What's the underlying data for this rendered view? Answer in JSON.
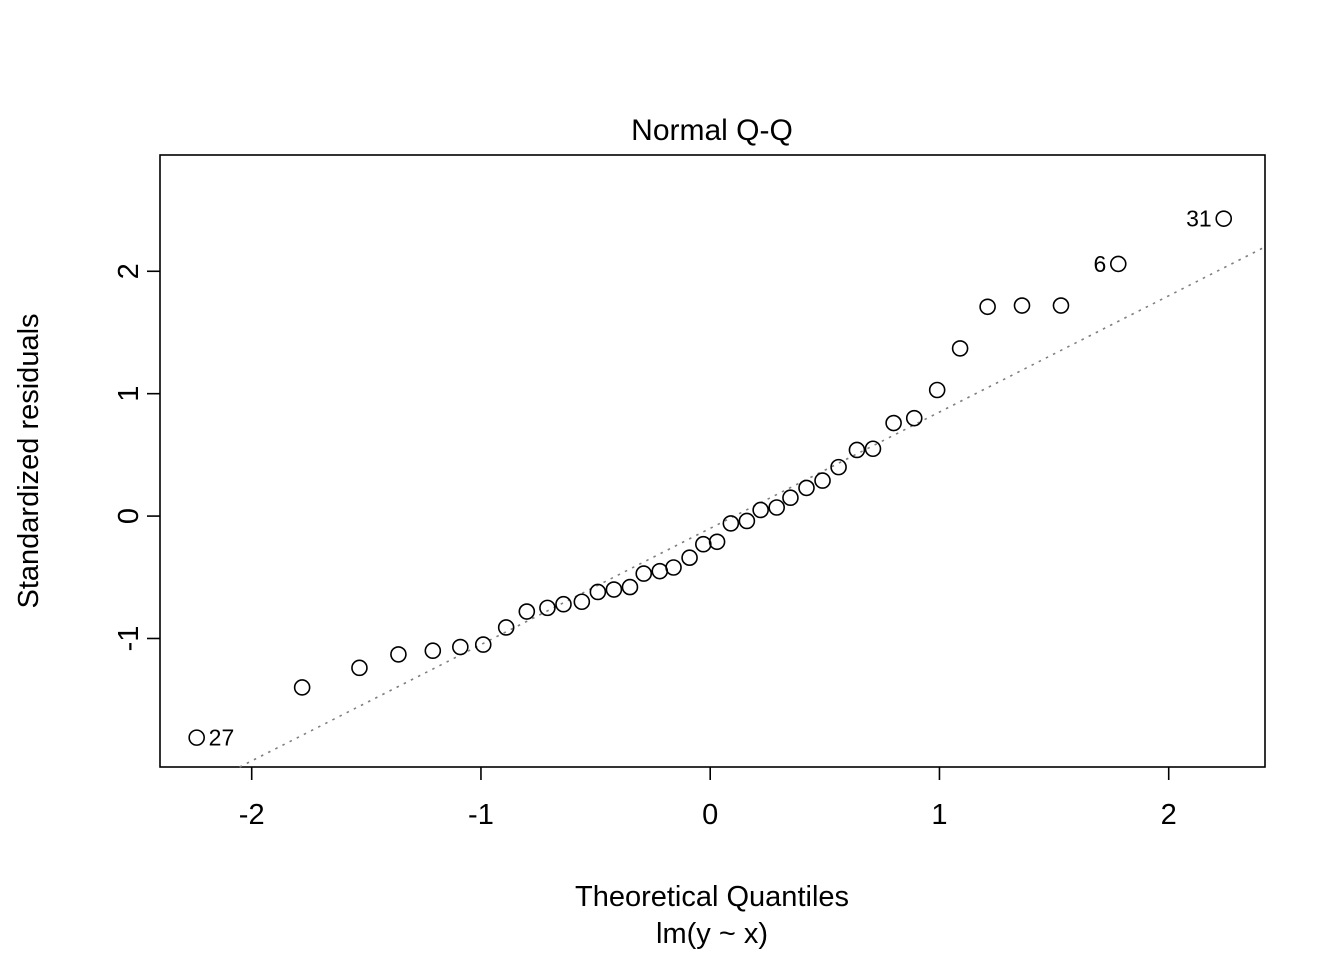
{
  "chart_data": {
    "type": "scatter",
    "title": "Normal Q-Q",
    "xlabel": "Theoretical Quantiles",
    "xlabel_sub": "lm(y ~ x)",
    "ylabel": "Standardized residuals",
    "xlim": [
      -2.4,
      2.42
    ],
    "ylim": [
      -2.05,
      2.95
    ],
    "x_ticks": [
      -2,
      -1,
      0,
      1,
      2
    ],
    "y_ticks": [
      -1,
      0,
      1,
      2
    ],
    "grid": false,
    "legend": false,
    "reference_line": {
      "slope": 0.95,
      "intercept": -0.1,
      "style": "dotted",
      "color": "#7f7f7f"
    },
    "point_style": {
      "marker": "open-circle",
      "stroke": "#000000",
      "fill": "none"
    },
    "points": [
      {
        "x": -2.24,
        "y": -1.81,
        "label": "27",
        "label_side": "right"
      },
      {
        "x": -1.78,
        "y": -1.4
      },
      {
        "x": -1.53,
        "y": -1.24
      },
      {
        "x": -1.36,
        "y": -1.13
      },
      {
        "x": -1.21,
        "y": -1.1
      },
      {
        "x": -1.09,
        "y": -1.07
      },
      {
        "x": -0.99,
        "y": -1.05
      },
      {
        "x": -0.89,
        "y": -0.91
      },
      {
        "x": -0.8,
        "y": -0.78
      },
      {
        "x": -0.71,
        "y": -0.75
      },
      {
        "x": -0.64,
        "y": -0.72
      },
      {
        "x": -0.56,
        "y": -0.7
      },
      {
        "x": -0.49,
        "y": -0.62
      },
      {
        "x": -0.42,
        "y": -0.6
      },
      {
        "x": -0.35,
        "y": -0.58
      },
      {
        "x": -0.29,
        "y": -0.47
      },
      {
        "x": -0.22,
        "y": -0.45
      },
      {
        "x": -0.16,
        "y": -0.42
      },
      {
        "x": -0.09,
        "y": -0.34
      },
      {
        "x": -0.03,
        "y": -0.23
      },
      {
        "x": 0.03,
        "y": -0.21
      },
      {
        "x": 0.09,
        "y": -0.06
      },
      {
        "x": 0.16,
        "y": -0.04
      },
      {
        "x": 0.22,
        "y": 0.05
      },
      {
        "x": 0.29,
        "y": 0.07
      },
      {
        "x": 0.35,
        "y": 0.15
      },
      {
        "x": 0.42,
        "y": 0.23
      },
      {
        "x": 0.49,
        "y": 0.29
      },
      {
        "x": 0.56,
        "y": 0.4
      },
      {
        "x": 0.64,
        "y": 0.54
      },
      {
        "x": 0.71,
        "y": 0.55
      },
      {
        "x": 0.8,
        "y": 0.76
      },
      {
        "x": 0.89,
        "y": 0.8
      },
      {
        "x": 0.99,
        "y": 1.03
      },
      {
        "x": 1.09,
        "y": 1.37
      },
      {
        "x": 1.21,
        "y": 1.71
      },
      {
        "x": 1.36,
        "y": 1.72
      },
      {
        "x": 1.53,
        "y": 1.72
      },
      {
        "x": 1.78,
        "y": 2.06,
        "label": "6",
        "label_side": "left"
      },
      {
        "x": 2.24,
        "y": 2.43,
        "label": "31",
        "label_side": "left"
      }
    ]
  },
  "colors": {
    "background": "#ffffff",
    "foreground": "#000000",
    "reference_line": "#7f7f7f"
  }
}
